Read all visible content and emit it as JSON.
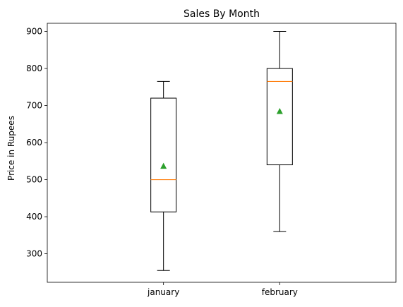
{
  "chart_data": {
    "type": "box",
    "title": "Sales By Month",
    "xlabel": "",
    "ylabel": "Price in Rupees",
    "categories": [
      "january",
      "february"
    ],
    "boxes": [
      {
        "label": "january",
        "whisker_low": 255,
        "q1": 413,
        "median": 500,
        "q3": 720,
        "whisker_high": 765,
        "mean": 536
      },
      {
        "label": "february",
        "whisker_low": 360,
        "q1": 540,
        "median": 765,
        "q3": 800,
        "whisker_high": 900,
        "mean": 684
      }
    ],
    "yticks": [
      300,
      400,
      500,
      600,
      700,
      800,
      900
    ],
    "ylim": [
      223,
      922
    ],
    "grid": false,
    "legend": "none",
    "colors": {
      "box": "#000000",
      "median": "#ff7f0e",
      "mean": "#2ca02c"
    }
  }
}
